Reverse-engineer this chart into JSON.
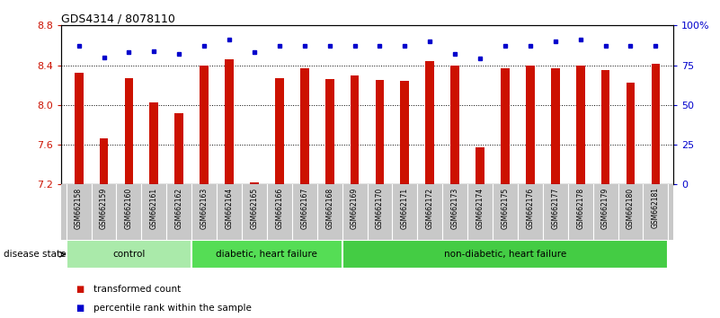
{
  "title": "GDS4314 / 8078110",
  "samples": [
    "GSM662158",
    "GSM662159",
    "GSM662160",
    "GSM662161",
    "GSM662162",
    "GSM662163",
    "GSM662164",
    "GSM662165",
    "GSM662166",
    "GSM662167",
    "GSM662168",
    "GSM662169",
    "GSM662170",
    "GSM662171",
    "GSM662172",
    "GSM662173",
    "GSM662174",
    "GSM662175",
    "GSM662176",
    "GSM662177",
    "GSM662178",
    "GSM662179",
    "GSM662180",
    "GSM662181"
  ],
  "bar_values": [
    8.32,
    7.66,
    8.27,
    8.03,
    7.92,
    8.4,
    8.46,
    7.22,
    8.27,
    8.37,
    8.26,
    8.3,
    8.25,
    8.24,
    8.44,
    8.4,
    7.57,
    8.37,
    8.4,
    8.37,
    8.4,
    8.35,
    8.22,
    8.41
  ],
  "percentile_values": [
    87,
    80,
    83,
    84,
    82,
    87,
    91,
    83,
    87,
    87,
    87,
    87,
    87,
    87,
    90,
    82,
    79,
    87,
    87,
    90,
    91,
    87,
    87,
    87
  ],
  "bar_color": "#cc1100",
  "dot_color": "#0000cc",
  "ylim_left": [
    7.2,
    8.8
  ],
  "ylim_right": [
    0,
    100
  ],
  "yticks_left": [
    7.2,
    7.6,
    8.0,
    8.4,
    8.8
  ],
  "yticks_right": [
    0,
    25,
    50,
    75,
    100
  ],
  "ytick_labels_right": [
    "0",
    "25",
    "50",
    "75",
    "100%"
  ],
  "grid_values": [
    7.6,
    8.0,
    8.4,
    8.8
  ],
  "groups": [
    {
      "label": "control",
      "start": 0,
      "end": 5,
      "color": "#aaeaaa"
    },
    {
      "label": "diabetic, heart failure",
      "start": 5,
      "end": 11,
      "color": "#55dd55"
    },
    {
      "label": "non-diabetic, heart failure",
      "start": 11,
      "end": 24,
      "color": "#44cc44"
    }
  ],
  "legend_items": [
    {
      "label": "transformed count",
      "color": "#cc1100"
    },
    {
      "label": "percentile rank within the sample",
      "color": "#0000cc"
    }
  ],
  "disease_state_label": "disease state",
  "tick_area_color": "#c8c8c8",
  "bar_width": 0.35
}
